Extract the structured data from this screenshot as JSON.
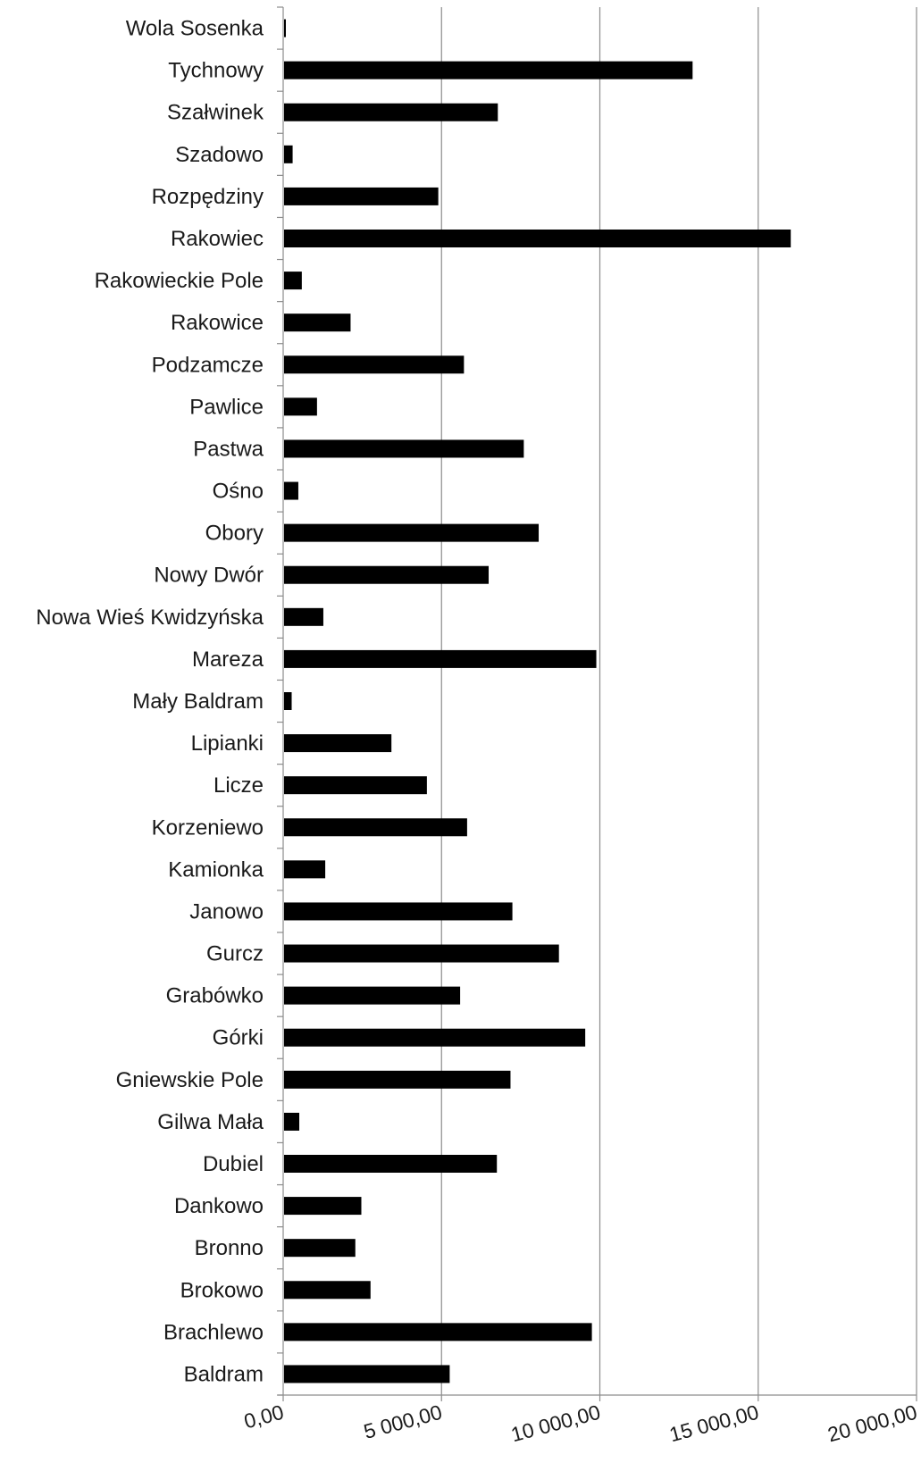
{
  "chart_data": {
    "type": "bar",
    "orientation": "horizontal",
    "title": "",
    "xlabel": "",
    "ylabel": "",
    "xlim": [
      0,
      20000
    ],
    "x_ticks": [
      0,
      5000,
      10000,
      15000,
      20000
    ],
    "x_tick_labels": [
      "0,00",
      "5 000,00",
      "10 000,00",
      "15 000,00",
      "20 000,00"
    ],
    "grid": "vertical",
    "legend": "none",
    "bar_color": "#000000",
    "categories": [
      "Wola Sosenka",
      "Tychnowy",
      "Szałwinek",
      "Szadowo",
      "Rozpędziny",
      "Rakowiec",
      "Rakowieckie Pole",
      "Rakowice",
      "Podzamcze",
      "Pawlice",
      "Pastwa",
      "Ośno",
      "Obory",
      "Nowy Dwór",
      "Nowa Wieś Kwidzyńska",
      "Mareza",
      "Mały Baldram",
      "Lipianki",
      "Licze",
      "Korzeniewo",
      "Kamionka",
      "Janowo",
      "Gurcz",
      "Grabówko",
      "Górki",
      "Gniewskie Pole",
      "Gilwa Mała",
      "Dubiel",
      "Dankowo",
      "Bronno",
      "Brokowo",
      "Brachlewo",
      "Baldram"
    ],
    "values": [
      50,
      12900,
      6750,
      270,
      4870,
      16000,
      560,
      2100,
      5680,
      1040,
      7570,
      450,
      8040,
      6460,
      1240,
      9860,
      240,
      3390,
      4510,
      5780,
      1300,
      7210,
      8680,
      5560,
      9510,
      7150,
      480,
      6720,
      2440,
      2250,
      2730,
      9720,
      5230
    ]
  }
}
